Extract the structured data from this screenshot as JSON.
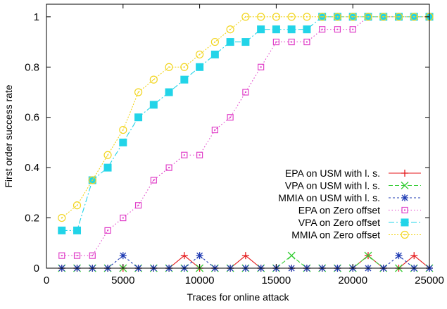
{
  "chart_data": {
    "type": "line",
    "xlabel": "Traces for online attack",
    "ylabel": "First order success rate",
    "xlim": [
      0,
      25000
    ],
    "ylim": [
      0,
      1.05
    ],
    "xticks": [
      0,
      5000,
      10000,
      15000,
      20000,
      25000
    ],
    "yticks": [
      0,
      0.2,
      0.4,
      0.6,
      0.8,
      1
    ],
    "xtick_labels": [
      "0",
      "5000",
      "10000",
      "15000",
      "20000",
      "25000"
    ],
    "ytick_labels": [
      "0",
      "0.2",
      "0.4",
      "0.6",
      "0.8",
      "1"
    ],
    "grid": false,
    "legend_position": "right",
    "x": [
      1000,
      2000,
      3000,
      4000,
      5000,
      6000,
      7000,
      8000,
      9000,
      10000,
      11000,
      12000,
      13000,
      14000,
      15000,
      16000,
      17000,
      18000,
      19000,
      20000,
      21000,
      22000,
      23000,
      24000,
      25000
    ],
    "series": [
      {
        "name": "EPA on USM with l. s.",
        "color": "#e41a1c",
        "marker": "plus",
        "dash": "",
        "values": [
          0,
          0,
          0,
          0,
          0,
          0,
          0,
          0,
          0.05,
          0,
          0,
          0,
          0.05,
          0,
          0,
          0,
          0,
          0,
          0,
          0,
          0.05,
          0,
          0,
          0.05,
          0
        ]
      },
      {
        "name": "VPA on USM with l. s.",
        "color": "#33cc33",
        "marker": "cross",
        "dash": "6,3",
        "values": [
          0,
          0,
          0,
          0,
          0,
          0,
          0,
          0,
          0,
          0,
          0,
          0,
          0,
          0,
          0,
          0.05,
          0,
          0,
          0,
          0,
          0.05,
          0,
          0,
          0,
          0
        ]
      },
      {
        "name": "MMIA on USM with l. s.",
        "color": "#1f3bb3",
        "marker": "star",
        "dash": "3,3",
        "values": [
          0,
          0,
          0,
          0,
          0.05,
          0,
          0,
          0,
          0,
          0.05,
          0,
          0,
          0,
          0,
          0,
          0,
          0,
          0,
          0,
          0,
          0,
          0,
          0.05,
          0,
          0
        ]
      },
      {
        "name": "EPA on Zero offset",
        "color": "#e040c8",
        "marker": "square-open",
        "dash": "1.5,3",
        "values": [
          0.05,
          0.05,
          0.05,
          0.15,
          0.2,
          0.25,
          0.35,
          0.4,
          0.45,
          0.45,
          0.55,
          0.6,
          0.7,
          0.8,
          0.9,
          0.9,
          0.9,
          0.95,
          0.95,
          0.95,
          1,
          1,
          1,
          1,
          1
        ]
      },
      {
        "name": "VPA on Zero offset",
        "color": "#22d4e8",
        "marker": "square-filled",
        "dash": "8,3,2,3",
        "values": [
          0.15,
          0.15,
          0.35,
          0.4,
          0.5,
          0.6,
          0.65,
          0.7,
          0.75,
          0.8,
          0.85,
          0.9,
          0.9,
          0.95,
          0.95,
          0.95,
          0.95,
          1,
          1,
          1,
          1,
          1,
          1,
          1,
          1
        ]
      },
      {
        "name": "MMIA on Zero offset",
        "color": "#f2d51f",
        "marker": "circle-open",
        "dash": "2,2",
        "values": [
          0.2,
          0.25,
          0.35,
          0.45,
          0.55,
          0.7,
          0.75,
          0.8,
          0.8,
          0.85,
          0.9,
          0.95,
          1,
          1,
          1,
          1,
          1,
          1,
          1,
          1,
          1,
          1,
          1,
          1,
          1
        ]
      }
    ]
  }
}
